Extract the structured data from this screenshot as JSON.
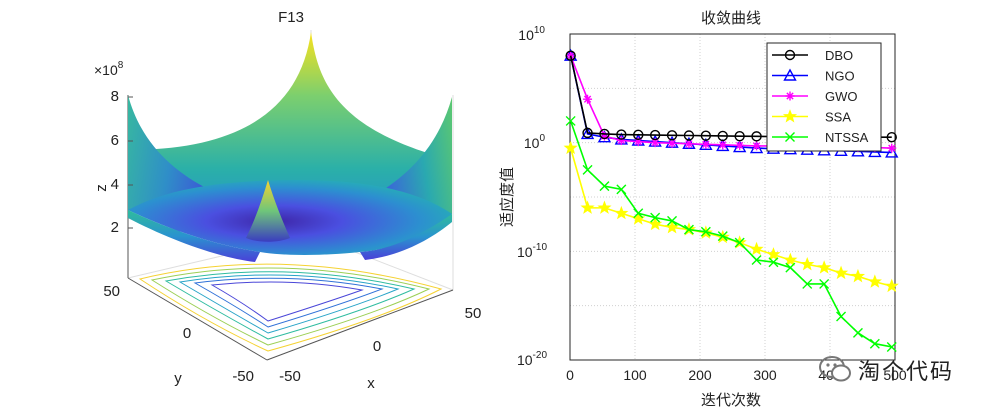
{
  "colors": {
    "DBO": "#000000",
    "NGO": "#0000ff",
    "GWO": "#ff00ff",
    "SSA": "#ffff00",
    "NTSSA": "#00ff00",
    "surface_low": "#3e26a8",
    "surface_mid": "#2ab6a8",
    "surface_high": "#f9e21d"
  },
  "watermark": {
    "text": "淘个代码"
  },
  "chart_data": [
    {
      "type": "surface3d",
      "title": "F13",
      "xlabel": "x",
      "ylabel": "y",
      "zlabel": "z",
      "z_scale_label": "×10",
      "z_scale_exponent": "8",
      "x_ticks": [
        "-50",
        "0",
        "50"
      ],
      "y_ticks": [
        "-50",
        "0",
        "50"
      ],
      "z_ticks": [
        "2",
        "4",
        "6",
        "8"
      ],
      "xlim": [
        -50,
        50
      ],
      "ylim": [
        -50,
        50
      ],
      "zlim": [
        0,
        8
      ]
    },
    {
      "type": "line",
      "title": "收敛曲线",
      "xlabel": "迭代次数",
      "ylabel": "适应度值",
      "yscale": "log",
      "xlim": [
        0,
        500
      ],
      "ylim_exp": [
        -20,
        10
      ],
      "x_ticks": [
        "0",
        "100",
        "200",
        "300",
        "400",
        "500"
      ],
      "y_tick_base": "10",
      "y_tick_exps": [
        "10",
        "0",
        "-10",
        "-20"
      ],
      "y_tick_mid": "0",
      "y_tick_mid_label": "10",
      "legend_position": "top-right",
      "x": [
        1,
        27,
        53,
        79,
        105,
        131,
        157,
        183,
        209,
        235,
        261,
        287,
        313,
        339,
        365,
        391,
        417,
        443,
        469,
        495
      ],
      "series": [
        {
          "name": "DBO",
          "marker": "circle",
          "log10_values": [
            8.0,
            0.9,
            0.8,
            0.75,
            0.72,
            0.7,
            0.68,
            0.66,
            0.64,
            0.62,
            0.6,
            0.58,
            0.56,
            0.55,
            0.54,
            0.53,
            0.52,
            0.51,
            0.5,
            0.5
          ]
        },
        {
          "name": "NGO",
          "marker": "triangle",
          "log10_values": [
            8.0,
            0.8,
            0.5,
            0.3,
            0.2,
            0.1,
            0.0,
            -0.1,
            -0.2,
            -0.3,
            -0.4,
            -0.5,
            -0.55,
            -0.6,
            -0.65,
            -0.7,
            -0.75,
            -0.8,
            -0.85,
            -0.9
          ]
        },
        {
          "name": "GWO",
          "marker": "star",
          "log10_values": [
            8.0,
            4.0,
            0.6,
            0.2,
            0.1,
            0.0,
            -0.05,
            -0.1,
            -0.15,
            -0.2,
            -0.25,
            -0.3,
            -0.3,
            -0.35,
            -0.35,
            -0.4,
            -0.4,
            -0.45,
            -0.45,
            -0.5
          ]
        },
        {
          "name": "SSA",
          "marker": "pentagram",
          "log10_values": [
            -0.5,
            -6.0,
            -6.0,
            -6.5,
            -7.0,
            -7.5,
            -7.8,
            -8.0,
            -8.3,
            -8.7,
            -9.2,
            -9.8,
            -10.3,
            -10.8,
            -11.2,
            -11.5,
            -12.0,
            -12.3,
            -12.8,
            -13.2
          ]
        },
        {
          "name": "NTSSA",
          "marker": "x",
          "log10_values": [
            2.0,
            -2.5,
            -4.0,
            -4.3,
            -6.5,
            -6.9,
            -7.2,
            -8.0,
            -8.2,
            -8.6,
            -9.2,
            -10.8,
            -11.0,
            -11.5,
            -13.0,
            -13.0,
            -16.0,
            -17.5,
            -18.5,
            -18.8
          ]
        }
      ]
    }
  ]
}
